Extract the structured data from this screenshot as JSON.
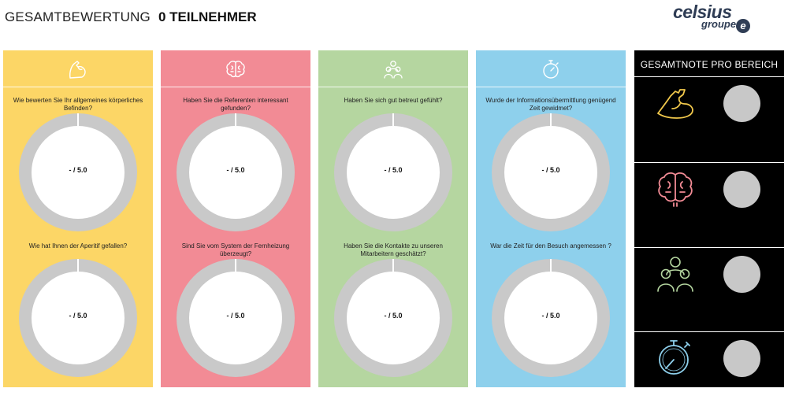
{
  "header": {
    "title": "GESAMTBEWERTUNG",
    "participants": "0 TEILNEHMER"
  },
  "logo": {
    "word1": "celsius",
    "word2": "groupe",
    "badge": "e"
  },
  "colors": {
    "panel1": "#fcd666",
    "panel2": "#f28b95",
    "panel3": "#b5d6a0",
    "panel4": "#8ed0ec",
    "gauge_track": "#c9c9c9",
    "summary_bg": "#000000"
  },
  "panels": [
    {
      "icon": "flexed-arm-icon",
      "questions": [
        {
          "text": "Wie bewerten Sie Ihr allgemeines körperliches Befinden?",
          "score": "- / 5.0"
        },
        {
          "text": "Wie hat Ihnen der Aperitif gefallen?",
          "score": "- / 5.0"
        }
      ]
    },
    {
      "icon": "brain-icon",
      "questions": [
        {
          "text": "Haben Sie die Referenten interessant gefunden?",
          "score": "- / 5.0"
        },
        {
          "text": "Sind Sie vom System der Fernheizung überzeugt?",
          "score": "- / 5.0"
        }
      ]
    },
    {
      "icon": "people-group-icon",
      "questions": [
        {
          "text": "Haben Sie sich gut betreut gefühlt?",
          "score": "- / 5.0"
        },
        {
          "text": "Haben Sie die Kontakte zu unseren Mitarbeitern geschätzt?",
          "score": "- / 5.0"
        }
      ]
    },
    {
      "icon": "stopwatch-icon",
      "questions": [
        {
          "text": "Wurde der Informationsübermittlung genügend Zeit gewidmet?",
          "score": "- / 5.0"
        },
        {
          "text": "War die Zeit für den Besuch angemessen ?",
          "score": "- / 5.0"
        }
      ]
    }
  ],
  "summary": {
    "title": "GESAMTNOTE PRO BEREICH",
    "rows": [
      {
        "icon": "flexed-arm-icon",
        "color": "#f2c94c"
      },
      {
        "icon": "brain-icon",
        "color": "#f28b95"
      },
      {
        "icon": "people-group-icon",
        "color": "#b5d6a0"
      },
      {
        "icon": "stopwatch-icon",
        "color": "#8ed0ec"
      }
    ]
  }
}
